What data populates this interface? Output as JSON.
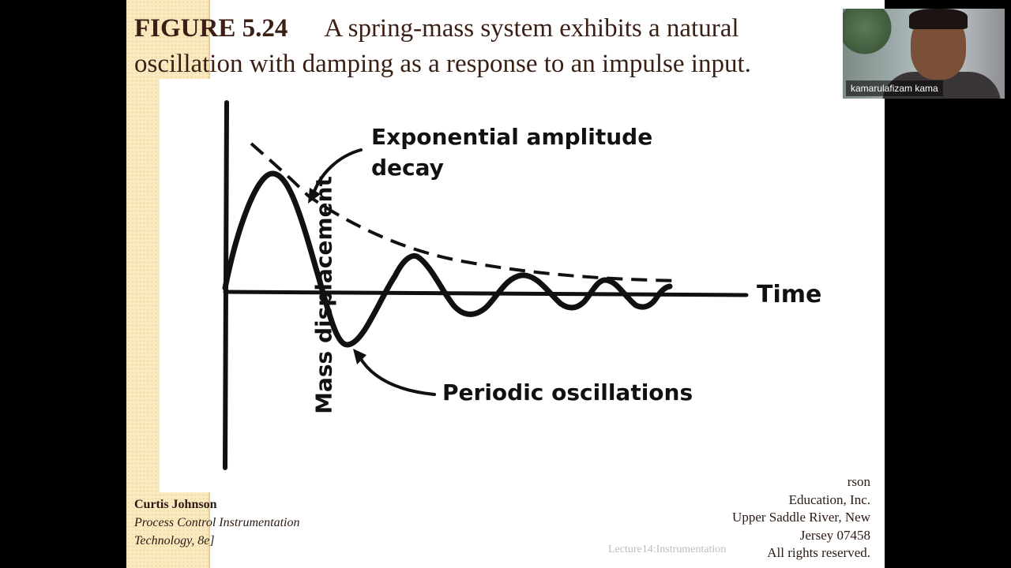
{
  "slide": {
    "figure_label": "FIGURE 5.24",
    "title_line1": "A spring-mass system exhibits a natural",
    "title_line2": "oscillation with damping as a response to an impulse input."
  },
  "diagram": {
    "y_axis_label": "Mass displacement",
    "x_axis_label": "Time",
    "annotation_decay_line1": "Exponential amplitude",
    "annotation_decay_line2": "decay",
    "annotation_periodic": "Periodic oscillations"
  },
  "credit": {
    "author": "Curtis Johnson",
    "book_line1": "Process Control Instrumentation",
    "book_line2": "Technology, 8e]"
  },
  "publisher": {
    "line1": "rson",
    "line2": "Education, Inc.",
    "line3": "Upper Saddle River, New",
    "line4": "Jersey 07458",
    "line5": "All rights reserved."
  },
  "footer": {
    "lecture": "Lecture14:Instrumentation"
  },
  "video": {
    "participant_name": "kamarulafizam kama"
  }
}
